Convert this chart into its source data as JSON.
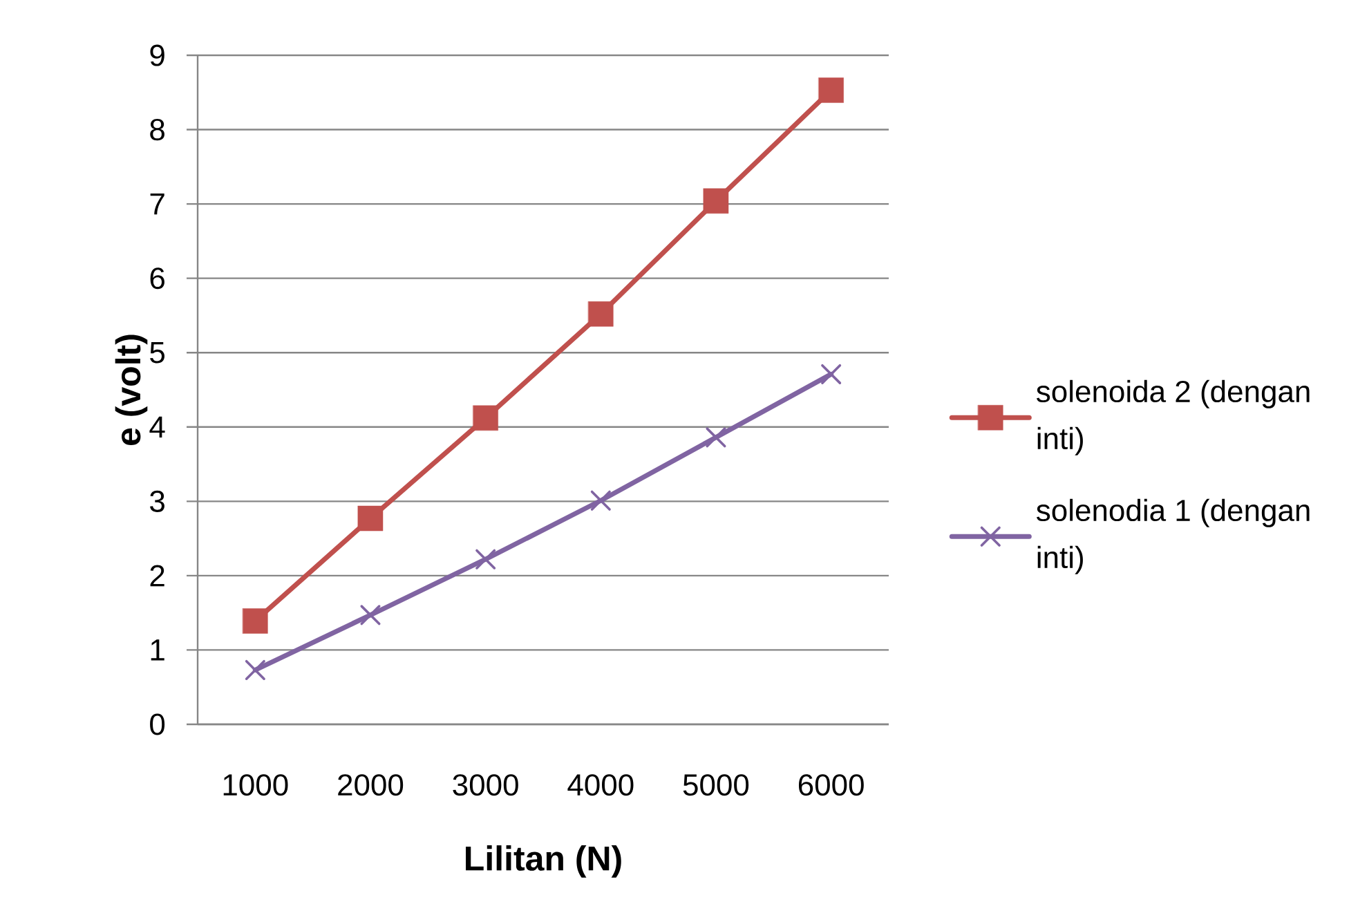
{
  "chart_data": {
    "type": "line",
    "xlabel": "Lilitan (N)",
    "ylabel": "e (volt)",
    "categories": [
      "1000",
      "2000",
      "3000",
      "4000",
      "5000",
      "6000"
    ],
    "series": [
      {
        "name": "solenoida 2 (dengan inti)",
        "color": "#c0504d",
        "marker": "square",
        "values": [
          1.39,
          2.77,
          4.12,
          5.52,
          7.04,
          8.53
        ]
      },
      {
        "name": "solenodia 1 (dengan inti)",
        "color": "#8064a2",
        "marker": "cross",
        "values": [
          0.73,
          1.47,
          2.22,
          3.01,
          3.86,
          4.71
        ]
      }
    ],
    "ylim": [
      0,
      9
    ],
    "yticks": [
      0,
      1,
      2,
      3,
      4,
      5,
      6,
      7,
      8,
      9
    ],
    "grid": "y",
    "legend": "right",
    "line_style": "solid"
  }
}
